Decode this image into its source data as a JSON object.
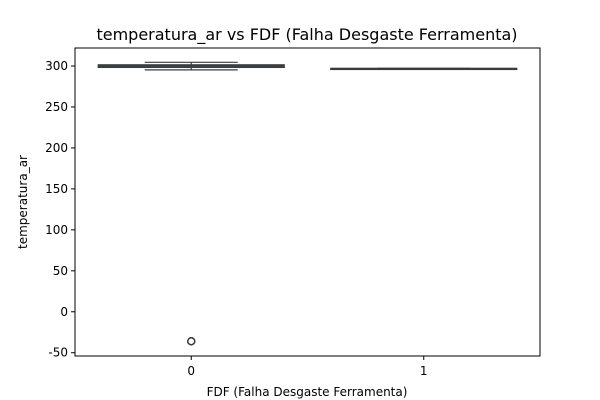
{
  "chart_data": {
    "type": "box",
    "title": "temperatura_ar vs FDF (Falha Desgaste Ferramenta)",
    "xlabel": "FDF (Falha Desgaste Ferramenta)",
    "ylabel": "temperatura_ar",
    "categories": [
      "0",
      "1"
    ],
    "yticks": [
      -50,
      0,
      50,
      100,
      150,
      200,
      250,
      300
    ],
    "ylim": [
      -54,
      322
    ],
    "grid": false,
    "legend": "none",
    "boxes": [
      {
        "category": "0",
        "whisker_low": 295.3,
        "q1": 298.3,
        "median": 300.0,
        "q3": 301.5,
        "whisker_high": 304.5,
        "outliers": [
          -36,
          -36,
          -36,
          -36,
          -36
        ]
      },
      {
        "category": "1",
        "whisker_low": 297.0,
        "q1": 297.0,
        "median": 297.0,
        "q3": 297.0,
        "whisker_high": 297.0,
        "outliers": []
      }
    ]
  }
}
